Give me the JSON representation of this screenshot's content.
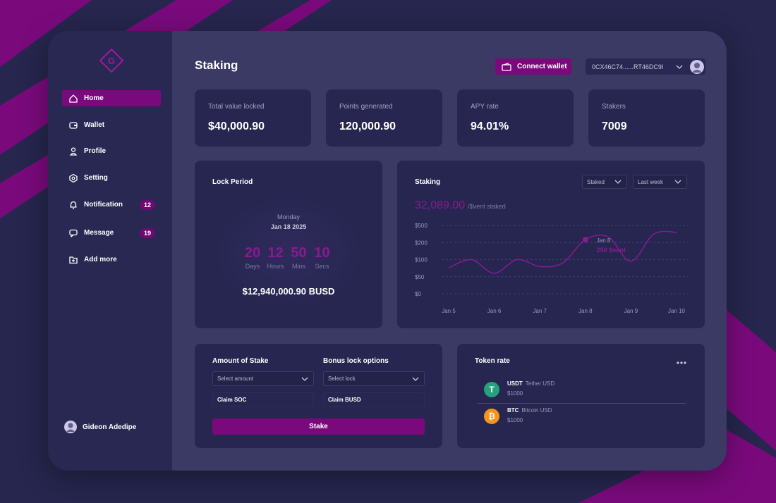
{
  "sidebar": {
    "nav": [
      {
        "label": "Home"
      },
      {
        "label": "Wallet"
      },
      {
        "label": "Profile"
      },
      {
        "label": "Setting"
      },
      {
        "label": "Notification",
        "badge": "12"
      },
      {
        "label": "Message",
        "badge": "19"
      },
      {
        "label": "Add more"
      }
    ],
    "user": "Gideon Adedipe"
  },
  "header": {
    "title": "Staking",
    "connect": "Connect wallet",
    "address": "0CX46C74......RT46DC9I"
  },
  "stats": [
    {
      "label": "Total value locked",
      "value": "$40,000.90"
    },
    {
      "label": "Points generated",
      "value": "120,000.90"
    },
    {
      "label": "APY rate",
      "value": "94.01%"
    },
    {
      "label": "Stakers",
      "value": "7009"
    }
  ],
  "lock": {
    "title": "Lock Period",
    "day": "Monday",
    "date": "Jan 18 2025",
    "countdown": [
      {
        "value": "20",
        "unit": "Days"
      },
      {
        "value": "12",
        "unit": "Hours"
      },
      {
        "value": "50",
        "unit": "Mins"
      },
      {
        "value": "10",
        "unit": "Secs"
      }
    ],
    "amount": "$12,940,000.90 BUSD"
  },
  "staking": {
    "title": "Staking",
    "filters": [
      "Staked",
      "Last week"
    ],
    "total": "32,089.00",
    "total_unit": "/$vent staked",
    "chart": {
      "type": "line",
      "categories": [
        "Jan 5",
        null,
        "Jan 6",
        null,
        "Jan 7",
        null,
        "Jan 8",
        null,
        "Jan 9",
        null,
        "Jan 10"
      ],
      "values": [
        76,
        100,
        60,
        100,
        80,
        90,
        250,
        300,
        95,
        350,
        380
      ],
      "color": "#8a1a92",
      "ylim": [
        0,
        500
      ],
      "yticks": [
        {
          "value": 500,
          "label": "$500"
        },
        {
          "value": 200,
          "label": "$200"
        },
        {
          "value": 100,
          "label": "$100"
        },
        {
          "value": 50,
          "label": "$50"
        },
        {
          "value": 0,
          "label": "$0"
        }
      ],
      "grid": true,
      "annotation": {
        "index": 6,
        "date": "Jan 8",
        "text": "250 $vent"
      }
    }
  },
  "stake_form": {
    "amount_label": "Amount of Stake",
    "amount_placeholder": "Select amount",
    "bonus_label": "Bonus lock options",
    "bonus_placeholder": "Select lock",
    "claim_soc": "Claim SOC",
    "claim_busd": "Claim BUSD",
    "button": "Stake"
  },
  "token_rate": {
    "title": "Token rate",
    "tokens": [
      {
        "symbol": "USDT",
        "name": "Tether USD",
        "price": "$1000",
        "icon": "T",
        "color": "#26a17b"
      },
      {
        "symbol": "BTC",
        "name": "Bitcoin USD",
        "price": "$1000",
        "icon": "₿",
        "color": "#f7931a"
      }
    ]
  }
}
